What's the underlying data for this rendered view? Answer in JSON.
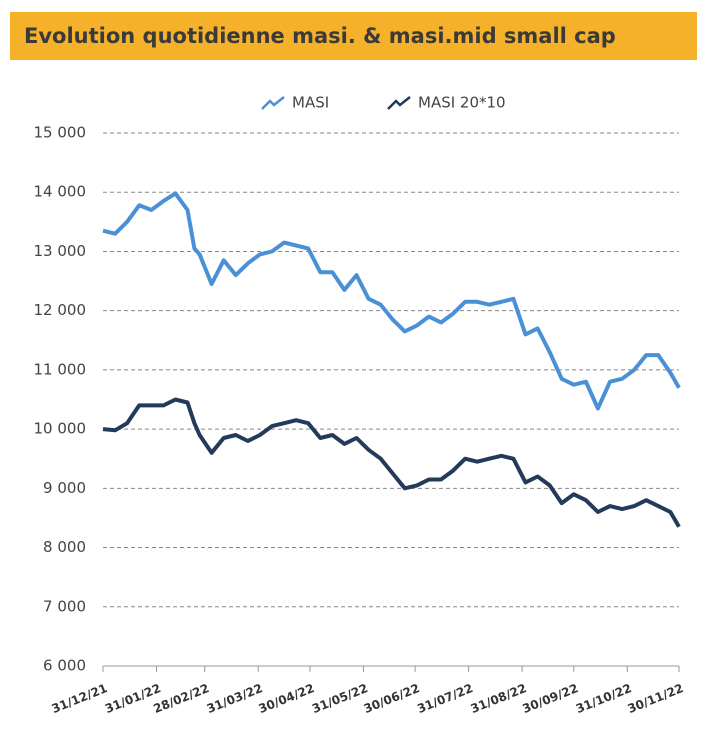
{
  "chart_data": {
    "type": "line",
    "title": "Evolution quotidienne masi. & masi.mid small cap",
    "x": [
      "31/12/21",
      "07/01/22",
      "14/01/22",
      "21/01/22",
      "28/01/22",
      "04/02/22",
      "11/02/22",
      "18/02/22",
      "22/02/22",
      "25/02/22",
      "04/03/22",
      "11/03/22",
      "18/03/22",
      "25/03/22",
      "01/04/22",
      "08/04/22",
      "15/04/22",
      "22/04/22",
      "29/04/22",
      "06/05/22",
      "13/05/22",
      "20/05/22",
      "27/05/22",
      "03/06/22",
      "10/06/22",
      "17/06/22",
      "24/06/22",
      "01/07/22",
      "08/07/22",
      "15/07/22",
      "22/07/22",
      "29/07/22",
      "05/08/22",
      "12/08/22",
      "19/08/22",
      "26/08/22",
      "02/09/22",
      "09/09/22",
      "16/09/22",
      "23/09/22",
      "30/09/22",
      "07/10/22",
      "14/10/22",
      "21/10/22",
      "28/10/22",
      "04/11/22",
      "11/11/22",
      "18/11/22",
      "25/11/22",
      "30/11/22"
    ],
    "series": [
      {
        "name": "MASI",
        "color": "#4a90d6",
        "values": [
          13350,
          13300,
          13500,
          13780,
          13700,
          13850,
          13980,
          13700,
          13050,
          12950,
          12450,
          12850,
          12600,
          12800,
          12950,
          13000,
          13150,
          13100,
          13050,
          12650,
          12650,
          12350,
          12600,
          12200,
          12100,
          11850,
          11650,
          11750,
          11900,
          11800,
          11950,
          12150,
          12150,
          12100,
          12150,
          12200,
          11600,
          11700,
          11300,
          10850,
          10750,
          10800,
          10350,
          10800,
          10850,
          11000,
          11250,
          11250,
          10950,
          10700
        ]
      },
      {
        "name": "MASI 20*10",
        "color": "#233a5a",
        "values": [
          10000,
          9980,
          10100,
          10400,
          10400,
          10400,
          10500,
          10450,
          10100,
          9900,
          9600,
          9850,
          9900,
          9800,
          9900,
          10050,
          10100,
          10150,
          10100,
          9850,
          9900,
          9750,
          9850,
          9650,
          9500,
          9250,
          9000,
          9050,
          9150,
          9150,
          9300,
          9500,
          9450,
          9500,
          9550,
          9500,
          9100,
          9200,
          9050,
          8750,
          8900,
          8800,
          8600,
          8700,
          8650,
          8700,
          8800,
          8700,
          8600,
          8350
        ]
      }
    ],
    "xlim": [
      "31/12/21",
      "30/11/22"
    ],
    "xticks": [
      "31/12/21",
      "31/01/22",
      "28/02/22",
      "31/03/22",
      "30/04/22",
      "31/05/22",
      "30/06/22",
      "31/07/22",
      "31/08/22",
      "30/09/22",
      "31/10/22",
      "30/11/22"
    ],
    "ylim": [
      6000,
      15000
    ],
    "yticks": [
      {
        "value": 6000,
        "label": "6 000"
      },
      {
        "value": 7000,
        "label": "7 000"
      },
      {
        "value": 8000,
        "label": "8 000"
      },
      {
        "value": 9000,
        "label": "9 000"
      },
      {
        "value": 10000,
        "label": "10 000"
      },
      {
        "value": 11000,
        "label": "11 000"
      },
      {
        "value": 12000,
        "label": "12 000"
      },
      {
        "value": 13000,
        "label": "13 000"
      },
      {
        "value": 14000,
        "label": "14 000"
      },
      {
        "value": 15000,
        "label": "15 000"
      }
    ],
    "grid": true,
    "legend": "top"
  }
}
